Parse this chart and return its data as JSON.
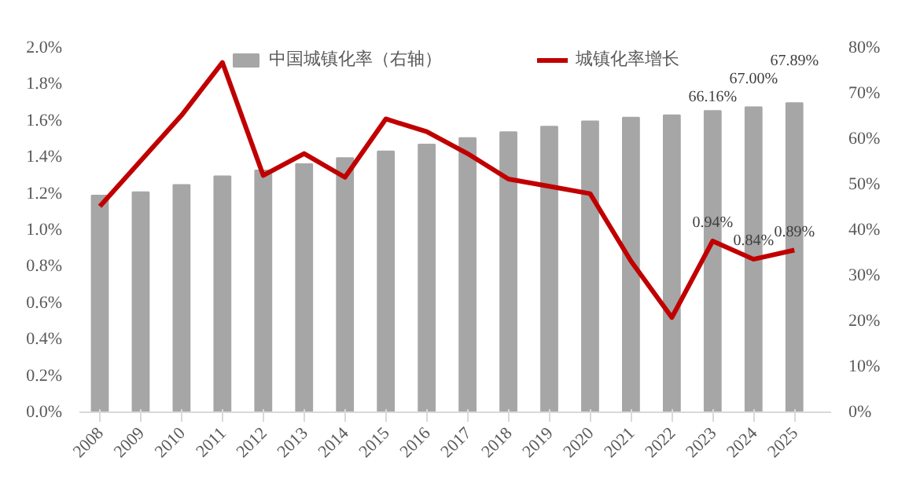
{
  "chart_data": {
    "type": "bar",
    "categories": [
      "2008",
      "2009",
      "2010",
      "2011",
      "2012",
      "2013",
      "2014",
      "2015",
      "2016",
      "2017",
      "2018",
      "2019",
      "2020",
      "2021",
      "2022",
      "2023",
      "2024",
      "2025"
    ],
    "series": [
      {
        "name": "中国城镇化率（右轴）",
        "axis": "y2",
        "color": "#a6a6a6",
        "values": [
          47.6,
          48.3,
          49.9,
          51.8,
          53.1,
          54.5,
          55.8,
          57.3,
          58.8,
          60.2,
          61.5,
          62.7,
          63.9,
          64.7,
          65.2,
          66.16,
          67.0,
          67.89
        ],
        "value_labels": [
          null,
          null,
          null,
          null,
          null,
          null,
          null,
          null,
          null,
          null,
          null,
          null,
          null,
          null,
          null,
          "66.16%",
          "67.00%",
          "67.89%"
        ]
      },
      {
        "name": "城镇化率增长",
        "type": "line",
        "color": "#c00000",
        "values": [
          1.13,
          1.38,
          1.63,
          1.92,
          1.3,
          1.42,
          1.29,
          1.61,
          1.54,
          1.42,
          1.28,
          1.24,
          1.2,
          0.83,
          0.52,
          0.94,
          0.84,
          0.89
        ],
        "value_labels": [
          null,
          null,
          null,
          null,
          null,
          null,
          null,
          null,
          null,
          null,
          null,
          null,
          null,
          null,
          null,
          "0.94%",
          "0.84%",
          "0.89%"
        ]
      }
    ],
    "ylim": [
      0,
      2.0
    ],
    "yticks": [
      {
        "value": 0,
        "label": "0.0%"
      },
      {
        "value": 0.2,
        "label": "0.2%"
      },
      {
        "value": 0.4,
        "label": "0.4%"
      },
      {
        "value": 0.6,
        "label": "0.6%"
      },
      {
        "value": 0.8,
        "label": "0.8%"
      },
      {
        "value": 1.0,
        "label": "1.0%"
      },
      {
        "value": 1.2,
        "label": "1.2%"
      },
      {
        "value": 1.4,
        "label": "1.4%"
      },
      {
        "value": 1.6,
        "label": "1.6%"
      },
      {
        "value": 1.8,
        "label": "1.8%"
      },
      {
        "value": 2.0,
        "label": "2.0%"
      }
    ],
    "y2lim": [
      0,
      80
    ],
    "y2ticks": [
      {
        "value": 0,
        "label": "0%"
      },
      {
        "value": 10,
        "label": "10%"
      },
      {
        "value": 20,
        "label": "20%"
      },
      {
        "value": 30,
        "label": "30%"
      },
      {
        "value": 40,
        "label": "40%"
      },
      {
        "value": 50,
        "label": "50%"
      },
      {
        "value": 60,
        "label": "60%"
      },
      {
        "value": 70,
        "label": "70%"
      },
      {
        "value": 80,
        "label": "80%"
      }
    ],
    "grid": false,
    "legend": "top"
  }
}
